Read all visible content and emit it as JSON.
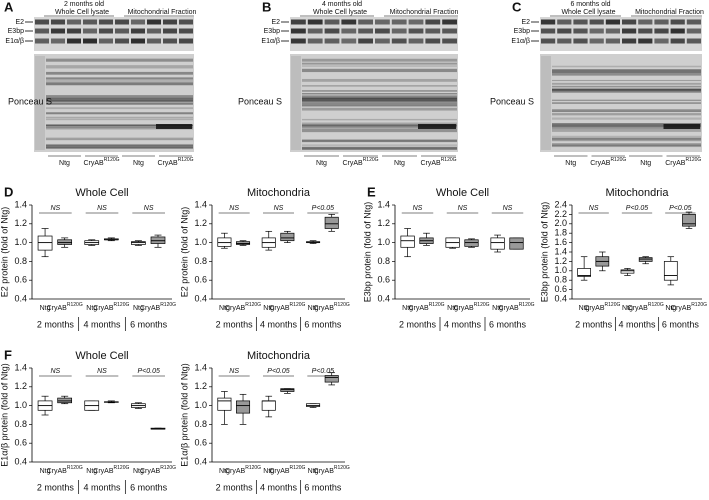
{
  "blots": [
    {
      "panel": "A",
      "age": "2 months old",
      "headers": [
        "Whole Cell lysate",
        "Mitochondrial Fraction"
      ],
      "bands": [
        "E2",
        "E3bp",
        "E1α/β"
      ],
      "stain": "Ponceau S",
      "groups": [
        {
          "name": "Ntg"
        },
        {
          "name": "CryAB",
          "superscript": "R120G"
        },
        {
          "name": "Ntg"
        },
        {
          "name": "CryAB",
          "superscript": "R120G"
        }
      ]
    },
    {
      "panel": "B",
      "age": "4 months old",
      "headers": [
        "Whole Cell lysate",
        "Mitochondrial Fraction"
      ],
      "bands": [
        "E2",
        "E3bp",
        "E1α/β"
      ],
      "stain": "Ponceau S",
      "groups": [
        {
          "name": "Ntg"
        },
        {
          "name": "CryAB",
          "superscript": "R120G"
        },
        {
          "name": "Ntg"
        },
        {
          "name": "CryAB",
          "superscript": "R120G"
        }
      ]
    },
    {
      "panel": "C",
      "age": "6 months old",
      "headers": [
        "Whole Cell lysate",
        "Mitochondrial Fraction"
      ],
      "bands": [
        "E2",
        "E3bp",
        "E1α/β"
      ],
      "stain": "Ponceau S",
      "groups": [
        {
          "name": "Ntg"
        },
        {
          "name": "CryAB",
          "superscript": "R120G"
        },
        {
          "name": "Ntg"
        },
        {
          "name": "CryAB",
          "superscript": "R120G"
        }
      ]
    }
  ],
  "chart_data": [
    {
      "type": "box",
      "panel": "D",
      "title": "Whole Cell",
      "y_label": "E2 protein (fold of Ntg)",
      "ylim": [
        0.4,
        1.4
      ],
      "yticks": [
        0.4,
        0.6,
        0.8,
        {
          "value": 1,
          "label": "1.0"
        },
        1.2,
        1.4
      ],
      "groups": [
        "2 months",
        "4 months",
        "6 months"
      ],
      "annotations": [
        "NS",
        "NS",
        "NS"
      ],
      "series": [
        {
          "name": "Ntg",
          "color": "#ffffff",
          "values": [
            [
              0.85,
              0.92,
              1.0,
              1.07,
              1.15
            ],
            [
              0.97,
              0.98,
              1.0,
              1.02,
              1.03
            ],
            [
              0.97,
              0.98,
              1.0,
              1.01,
              1.02
            ]
          ]
        },
        {
          "name": "CryAB",
          "superscript": "R120G",
          "color": "#999999",
          "values": [
            [
              0.95,
              0.98,
              1.0,
              1.03,
              1.05
            ],
            [
              1.02,
              1.03,
              1.03,
              1.04,
              1.05
            ],
            [
              0.95,
              0.99,
              1.02,
              1.06,
              1.08
            ]
          ]
        }
      ]
    },
    {
      "type": "box",
      "title": "Mitochondria",
      "y_label": "E2 protein (fold of Ntg)",
      "ylim": [
        0.4,
        1.4
      ],
      "yticks": [
        0.4,
        0.6,
        0.8,
        {
          "value": 1,
          "label": "1.0"
        },
        1.2,
        1.4
      ],
      "groups": [
        "2 months",
        "4 months",
        "6 months"
      ],
      "annotations": [
        "NS",
        "NS",
        "P<0.05"
      ],
      "series": [
        {
          "name": "Ntg",
          "color": "#ffffff",
          "values": [
            [
              0.94,
              0.96,
              1.0,
              1.05,
              1.1
            ],
            [
              0.92,
              0.95,
              1.0,
              1.05,
              1.12
            ],
            [
              0.99,
              1.0,
              1.0,
              1.01,
              1.02
            ]
          ]
        },
        {
          "name": "CryAB",
          "superscript": "R120G",
          "color": "#999999",
          "values": [
            [
              0.97,
              0.98,
              0.99,
              1.01,
              1.02
            ],
            [
              1.0,
              1.02,
              1.05,
              1.1,
              1.12
            ],
            [
              1.12,
              1.15,
              1.2,
              1.27,
              1.3
            ]
          ]
        }
      ]
    },
    {
      "type": "box",
      "panel": "E",
      "title": "Whole Cell",
      "y_label": "E3bp protein (fold of Ntg)",
      "ylim": [
        0.4,
        1.4
      ],
      "yticks": [
        0.4,
        0.6,
        0.8,
        {
          "value": 1,
          "label": "1.0"
        },
        1.2,
        1.4
      ],
      "groups": [
        "2 months",
        "4 months",
        "6 months"
      ],
      "annotations": [
        "NS",
        "NS",
        "NS"
      ],
      "series": [
        {
          "name": "Ntg",
          "color": "#ffffff",
          "values": [
            [
              0.85,
              0.95,
              1.02,
              1.07,
              1.15
            ],
            [
              0.94,
              0.95,
              1.0,
              1.05,
              1.05
            ],
            [
              0.9,
              0.93,
              1.0,
              1.05,
              1.08
            ]
          ]
        },
        {
          "name": "CryAB",
          "superscript": "R120G",
          "color": "#999999",
          "values": [
            [
              0.97,
              0.99,
              1.02,
              1.05,
              1.1
            ],
            [
              0.95,
              0.96,
              1.0,
              1.03,
              1.04
            ],
            [
              0.93,
              0.93,
              1.0,
              1.05,
              1.05
            ]
          ]
        }
      ]
    },
    {
      "type": "box",
      "title": "Mitochondria",
      "y_label": "E3bp protein (fold of Ntg)",
      "ylim": [
        0.4,
        2.4
      ],
      "yticks": [
        0.4,
        0.6,
        0.8,
        {
          "value": 1,
          "label": "1.0"
        },
        1.2,
        1.4,
        1.6,
        1.8,
        {
          "value": 2,
          "label": "2.0"
        },
        2.2,
        2.4
      ],
      "groups": [
        "2 months",
        "4 months",
        "6 months"
      ],
      "annotations": [
        "NS",
        "P<0.05",
        "P<0.05"
      ],
      "series": [
        {
          "name": "Ntg",
          "color": "#ffffff",
          "values": [
            [
              0.8,
              0.88,
              0.9,
              1.05,
              1.3
            ],
            [
              0.9,
              0.95,
              1.0,
              1.02,
              1.05
            ],
            [
              0.7,
              0.8,
              0.9,
              1.2,
              1.3
            ]
          ]
        },
        {
          "name": "CryAB",
          "superscript": "R120G",
          "color": "#999999",
          "values": [
            [
              1.0,
              1.1,
              1.2,
              1.3,
              1.4
            ],
            [
              1.15,
              1.2,
              1.25,
              1.28,
              1.3
            ],
            [
              1.9,
              1.95,
              2.0,
              2.2,
              2.25
            ]
          ]
        }
      ]
    },
    {
      "type": "box",
      "panel": "F",
      "title": "Whole Cell",
      "y_label": "E1α/β protein (fold of Ntg)",
      "ylim": [
        0.4,
        1.4
      ],
      "yticks": [
        0.4,
        0.6,
        0.8,
        {
          "value": 1,
          "label": "1.0"
        },
        1.2,
        1.4
      ],
      "groups": [
        "2 months",
        "4 months",
        "6 months"
      ],
      "annotations": [
        "NS",
        "NS",
        "P<0.05"
      ],
      "series": [
        {
          "name": "Ntg",
          "color": "#ffffff",
          "values": [
            [
              0.9,
              0.95,
              1.0,
              1.05,
              1.1
            ],
            [
              0.95,
              0.95,
              1.0,
              1.05,
              1.05
            ],
            [
              0.97,
              0.98,
              1.0,
              1.02,
              1.03
            ]
          ]
        },
        {
          "name": "CryAB",
          "superscript": "R120G",
          "color": "#999999",
          "values": [
            [
              1.02,
              1.03,
              1.05,
              1.08,
              1.1
            ],
            [
              1.03,
              1.04,
              1.04,
              1.04,
              1.05
            ],
            [
              0.75,
              0.75,
              0.75,
              0.76,
              0.76
            ]
          ]
        }
      ]
    },
    {
      "type": "box",
      "title": "Mitochondria",
      "y_label": "E1α/β protein (fold of Ntg)",
      "ylim": [
        0.4,
        1.4
      ],
      "yticks": [
        0.4,
        0.6,
        0.8,
        {
          "value": 1,
          "label": "1.0"
        },
        1.2,
        1.4
      ],
      "groups": [
        "2 months",
        "4 months",
        "6 months"
      ],
      "annotations": [
        "NS",
        "P<0.05",
        "P<0.05"
      ],
      "series": [
        {
          "name": "Ntg",
          "color": "#ffffff",
          "values": [
            [
              0.8,
              0.95,
              1.05,
              1.08,
              1.15
            ],
            [
              0.88,
              0.95,
              1.05,
              1.05,
              1.1
            ],
            [
              0.98,
              0.99,
              1.0,
              1.02,
              1.02
            ]
          ]
        },
        {
          "name": "CryAB",
          "superscript": "R120G",
          "color": "#999999",
          "values": [
            [
              0.8,
              0.92,
              1.0,
              1.05,
              1.12
            ],
            [
              1.13,
              1.15,
              1.17,
              1.18,
              1.18
            ],
            [
              1.22,
              1.25,
              1.3,
              1.32,
              1.35
            ]
          ]
        }
      ]
    }
  ]
}
